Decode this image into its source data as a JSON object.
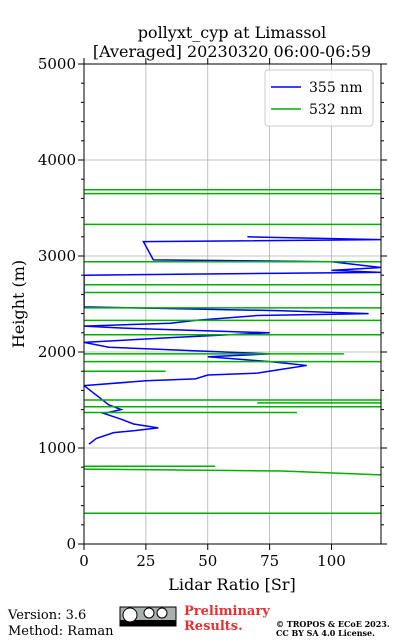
{
  "chart_data": {
    "type": "line",
    "title": "pollyxt_cyp at Limassol",
    "subtitle": "[Averaged] 20230320 06:00-06:59",
    "x_label": "Lidar Ratio [Sr]",
    "y_label": "Height (m)",
    "xlim": [
      0,
      120
    ],
    "xticks": [
      0,
      25,
      50,
      75,
      100
    ],
    "ylim": [
      0,
      5000
    ],
    "yticks": [
      0,
      1000,
      2000,
      3000,
      4000,
      5000
    ],
    "grid": true,
    "legend": "upper right",
    "series": [
      {
        "name": "355 nm",
        "color": "#0000ff",
        "values": [
          2,
          5,
          12,
          20,
          30,
          20,
          15,
          8,
          15,
          10,
          0,
          25,
          45,
          50,
          70,
          80,
          90,
          75,
          50,
          75,
          10,
          0,
          35,
          75,
          15,
          0,
          35,
          45,
          70,
          115,
          80,
          0,
          0,
          120,
          100,
          120,
          100,
          28,
          24,
          120,
          66
        ],
        "heights": [
          1040,
          1100,
          1160,
          1180,
          1210,
          1250,
          1300,
          1360,
          1400,
          1450,
          1650,
          1700,
          1720,
          1760,
          1780,
          1820,
          1860,
          1900,
          1950,
          1980,
          2050,
          2100,
          2150,
          2200,
          2250,
          2270,
          2300,
          2330,
          2380,
          2400,
          2430,
          2470,
          2800,
          2830,
          2850,
          2880,
          2940,
          2960,
          3150,
          3170,
          3200
        ]
      },
      {
        "name": "532 nm",
        "color": "#00b000",
        "values": [
          0,
          120,
          null,
          0,
          80,
          120,
          null,
          0,
          53,
          null,
          0,
          86,
          null,
          0,
          120,
          null,
          70,
          120,
          null,
          0,
          120,
          null,
          0,
          33,
          null,
          0,
          120,
          null,
          0,
          105,
          null,
          0,
          120,
          null,
          0,
          120,
          null,
          0,
          120,
          null,
          0,
          120,
          null,
          0,
          120,
          null,
          0,
          120,
          null,
          0,
          120,
          null,
          0,
          120,
          null,
          0,
          120
        ],
        "heights": [
          320,
          320,
          null,
          780,
          760,
          720,
          null,
          810,
          810,
          null,
          1370,
          1370,
          null,
          1430,
          1430,
          null,
          1470,
          1470,
          null,
          1500,
          1500,
          null,
          1800,
          1800,
          null,
          1900,
          1900,
          null,
          1980,
          1980,
          null,
          2180,
          2180,
          null,
          2330,
          2330,
          null,
          2460,
          2460,
          null,
          2620,
          2620,
          null,
          2700,
          2700,
          null,
          2940,
          2940,
          null,
          3330,
          3330,
          null,
          3650,
          3650,
          null,
          3690,
          3690
        ]
      }
    ]
  },
  "footer": {
    "version": "Version: 3.6",
    "method": "Method: Raman",
    "status": "Preliminary Results.",
    "copyright": "© TROPOS & ECoE 2023.",
    "license": "CC BY SA 4.0 License."
  }
}
